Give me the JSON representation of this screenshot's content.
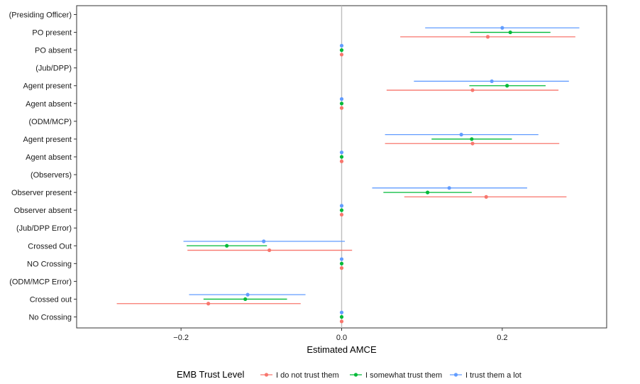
{
  "chart_data": {
    "type": "scatter",
    "subtype": "coefficient-plot-with-horizontal-error-bars",
    "title": "",
    "xlabel": "Estimated AMCE",
    "ylabel": "",
    "xlim": [
      -0.33,
      0.33
    ],
    "x_ticks": [
      -0.2,
      0.0,
      0.2
    ],
    "x_tick_labels": [
      "−0.2",
      "0.0",
      "0.2"
    ],
    "reference_line_x": 0,
    "grid": false,
    "categories": [
      "(Presiding Officer)",
      "PO present",
      "PO absent",
      "(Jub/DPP)",
      "Agent present",
      "Agent absent",
      "(ODM/MCP)",
      "Agent present",
      "Agent absent",
      "(Observers)",
      "Observer present",
      "Observer absent",
      "(Jub/DPP Error)",
      "Crossed Out",
      "NO Crossing",
      "(ODM/MCP Error)",
      "Crossed out",
      "No Crossing"
    ],
    "legend": {
      "title": "EMB Trust Level",
      "position": "bottom",
      "entries": [
        "I do not trust them",
        "I somewhat trust them",
        "I trust them a lot"
      ]
    },
    "colors": [
      "#F8766D",
      "#00BA38",
      "#619CFF"
    ],
    "series": [
      {
        "name": "I do not trust them",
        "estimates": [
          null,
          0.182,
          0,
          null,
          0.163,
          0,
          null,
          0.163,
          0,
          null,
          0.18,
          0,
          null,
          -0.09,
          0,
          null,
          -0.166,
          0
        ],
        "lower": [
          null,
          0.073,
          0,
          null,
          0.056,
          0,
          null,
          0.054,
          0,
          null,
          0.078,
          0,
          null,
          -0.192,
          0,
          null,
          -0.28,
          0
        ],
        "upper": [
          null,
          0.291,
          0,
          null,
          0.27,
          0,
          null,
          0.271,
          0,
          null,
          0.28,
          0,
          null,
          0.013,
          0,
          null,
          -0.051,
          0
        ]
      },
      {
        "name": "I somewhat trust them",
        "estimates": [
          null,
          0.21,
          0,
          null,
          0.206,
          0,
          null,
          0.162,
          0,
          null,
          0.107,
          0,
          null,
          -0.143,
          0,
          null,
          -0.12,
          0
        ],
        "lower": [
          null,
          0.16,
          0,
          null,
          0.159,
          0,
          null,
          0.112,
          0,
          null,
          0.052,
          0,
          null,
          -0.193,
          0,
          null,
          -0.172,
          0
        ],
        "upper": [
          null,
          0.26,
          0,
          null,
          0.254,
          0,
          null,
          0.212,
          0,
          null,
          0.162,
          0,
          null,
          -0.093,
          0,
          null,
          -0.068,
          0
        ]
      },
      {
        "name": "I trust them a lot",
        "estimates": [
          null,
          0.2,
          0,
          null,
          0.187,
          0,
          null,
          0.149,
          0,
          null,
          0.134,
          0,
          null,
          -0.097,
          0,
          null,
          -0.117,
          0
        ],
        "lower": [
          null,
          0.104,
          0,
          null,
          0.09,
          0,
          null,
          0.054,
          0,
          null,
          0.038,
          0,
          null,
          -0.197,
          0,
          null,
          -0.19,
          0
        ],
        "upper": [
          null,
          0.296,
          0,
          null,
          0.283,
          0,
          null,
          0.245,
          0,
          null,
          0.231,
          0,
          null,
          0.004,
          0,
          null,
          -0.045,
          0
        ]
      }
    ]
  }
}
